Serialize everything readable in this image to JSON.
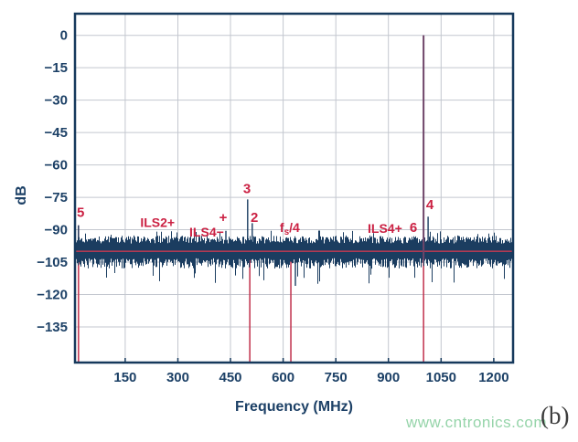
{
  "figure": {
    "watermark": "www.cntronics.com",
    "panel_label": "(b)"
  },
  "colors": {
    "trace_navy": "#1b3d60",
    "axis_navy": "#16395c",
    "grid_gray": "#c3c7cf",
    "marker_crimson": "#c02f4b",
    "floor_red": "#b13a52",
    "fundamental_plum": "#6f4569",
    "annotation_red": "#cb2143",
    "tick_text_navy": "#1c4066",
    "watermark_green": "#8fd2a4",
    "figure_label_gray": "#3d3d3d"
  },
  "chart_data": {
    "type": "line",
    "title": "",
    "xlabel": "Frequency (MHz)",
    "ylabel": "dB",
    "xlim": [
      7,
      1255
    ],
    "ylim": [
      -151.5,
      10
    ],
    "x_ticks": [
      150,
      300,
      450,
      600,
      750,
      900,
      1050,
      1200
    ],
    "y_ticks": [
      0,
      -15,
      -30,
      -45,
      -60,
      -75,
      -90,
      -105,
      -120,
      -135
    ],
    "grid": true,
    "legend": "none",
    "noise_floor": {
      "seed": 11,
      "mean_db": -100,
      "upper_envelope_db": [
        -96.5,
        -91
      ],
      "lower_envelope_db": [
        -103,
        -110
      ],
      "deep_dip_min_db": -116
    },
    "floor_line_db": -100,
    "fundamental": {
      "freq_mhz": 1000,
      "peak_db": 0
    },
    "marker_lines": [
      {
        "freq_mhz": 17,
        "top_db": -88
      },
      {
        "freq_mhz": 505,
        "top_db": -96
      },
      {
        "freq_mhz": 622,
        "top_db": -96
      },
      {
        "freq_mhz": 1000,
        "top_db": -100
      }
    ],
    "spurs": [
      {
        "freq_mhz": 17,
        "peak_db": -88
      },
      {
        "freq_mhz": 437,
        "peak_db": -90.5
      },
      {
        "freq_mhz": 499,
        "peak_db": -76
      },
      {
        "freq_mhz": 512,
        "peak_db": -87
      },
      {
        "freq_mhz": 981,
        "peak_db": -94
      },
      {
        "freq_mhz": 1013,
        "peak_db": -84
      }
    ],
    "dips": [
      {
        "freq_mhz": 635,
        "bottom_db": -116
      }
    ],
    "annotations": [
      {
        "text": "5",
        "freq_mhz": 23,
        "db": -82
      },
      {
        "text": "ILS2+",
        "freq_mhz": 242,
        "db": -86.5
      },
      {
        "text": "ILS4−",
        "freq_mhz": 382,
        "db": -91
      },
      {
        "text": "+",
        "freq_mhz": 429,
        "db": -84.3
      },
      {
        "text": "3",
        "freq_mhz": 497,
        "db": -71
      },
      {
        "text": "2",
        "freq_mhz": 518,
        "db": -84.3
      },
      {
        "text": "fs/4",
        "freq_mhz": 619,
        "db": -89
      },
      {
        "text": "ILS4+",
        "freq_mhz": 890,
        "db": -89.3
      },
      {
        "text": "6",
        "freq_mhz": 971,
        "db": -89
      },
      {
        "text": "4",
        "freq_mhz": 1018,
        "db": -78.4
      }
    ]
  }
}
